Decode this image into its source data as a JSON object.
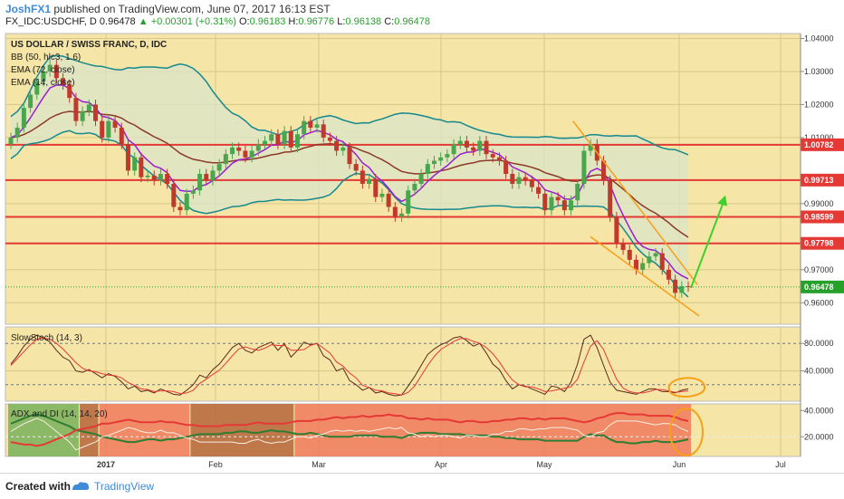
{
  "header": {
    "user": "JoshFX1",
    "published": "published on TradingView.com, June 07, 2017 16:13 EST",
    "symbol": "FX_IDC:USDCHF, D",
    "last": "0.96478",
    "change": "+0.00301 (+0.31%)",
    "o_label": "O:",
    "o_value": "0.96183",
    "h_label": "H:",
    "h_value": "0.96776",
    "l_label": "L:",
    "l_value": "0.96138",
    "c_label": "C:",
    "c_value": "0.96478"
  },
  "footer": {
    "created_with": "Created with",
    "brand": "TradingView"
  },
  "colors": {
    "panel_bg": "#f5e5a6",
    "bb_band": "#16888e",
    "bb_fill": "#d9e5c8",
    "ema72": "#8b3a2a",
    "ema14": "#9a1fd0",
    "up_candle": "#4aa64d",
    "down_candle": "#c0392b",
    "support_line": "#e53935",
    "wedge": "#f6a01a",
    "arrow": "#3cd12c",
    "stoch_k": "#5a2a1a",
    "stoch_d": "#e53935",
    "adx_green": "#2e7d32",
    "adx_red": "#e53935"
  },
  "chart_data": [
    {
      "type": "candlestick",
      "title": "US DOLLAR / SWISS FRANC, D, IDC",
      "indicators": [
        "BB (50, hlc3, 1.6)",
        "EMA (72, close)",
        "EMA (14, close)"
      ],
      "x_ticks": [
        "2017",
        "Feb",
        "Mar",
        "Apr",
        "May",
        "Jun",
        "Jul"
      ],
      "y_ticks": [
        "1.04000",
        "1.03000",
        "1.02000",
        "1.01000",
        "0.99000",
        "0.97000",
        "0.96000"
      ],
      "ylim": [
        0.9535,
        1.0415
      ],
      "price_tags": [
        {
          "label": "1.00782",
          "value": 1.00782
        },
        {
          "label": "0.99713",
          "value": 0.99713
        },
        {
          "label": "0.98599",
          "value": 0.98599
        },
        {
          "label": "0.97798",
          "value": 0.97798
        },
        {
          "label": "0.96478",
          "value": 0.96478
        }
      ],
      "support_resistance": [
        1.00782,
        0.99713,
        0.98599,
        0.97798
      ],
      "close": [
        1.01,
        1.013,
        1.019,
        1.023,
        1.027,
        1.03,
        1.032,
        1.028,
        1.026,
        1.022,
        1.015,
        1.018,
        1.02,
        1.015,
        1.01,
        1.015,
        1.013,
        1.008,
        1.0,
        1.004,
        0.998,
        0.9985,
        0.997,
        0.999,
        0.996,
        0.989,
        0.988,
        0.993,
        0.994,
        0.999,
        0.997,
        1.0,
        1.002,
        1.005,
        1.007,
        1.006,
        1.004,
        1.006,
        1.008,
        1.009,
        1.011,
        1.008,
        1.012,
        1.007,
        1.011,
        1.015,
        1.013,
        1.014,
        1.01,
        1.009,
        1.006,
        1.007,
        1.002,
        1.0,
        0.996,
        0.9975,
        0.992,
        0.993,
        0.989,
        0.986,
        0.987,
        0.994,
        0.996,
        0.999,
        1.002,
        1.003,
        1.004,
        1.005,
        1.008,
        1.009,
        1.007,
        1.006,
        1.009,
        1.005,
        1.004,
        1.003,
        0.999,
        0.996,
        0.998,
        0.997,
        0.995,
        0.993,
        0.988,
        0.992,
        0.991,
        0.988,
        0.991,
        0.996,
        1.006,
        1.008,
        1.003,
        0.997,
        0.986,
        0.978,
        0.976,
        0.973,
        0.97,
        0.972,
        0.974,
        0.975,
        0.97,
        0.967,
        0.963,
        0.965,
        0.9648
      ]
    },
    {
      "type": "line",
      "title": "SlowStoch (14, 3)",
      "y_ticks": [
        "80.0000",
        "40.0000"
      ],
      "ylim": [
        0,
        100
      ],
      "series": [
        {
          "values": [
            50,
            62,
            76,
            86,
            92,
            88,
            82,
            70,
            60,
            55,
            40,
            38,
            42,
            36,
            30,
            36,
            32,
            24,
            14,
            18,
            10,
            12,
            8,
            14,
            10,
            6,
            5,
            12,
            20,
            34,
            30,
            42,
            50,
            62,
            74,
            80,
            70,
            66,
            74,
            78,
            82,
            70,
            80,
            60,
            70,
            82,
            78,
            80,
            62,
            56,
            40,
            44,
            26,
            20,
            12,
            16,
            8,
            10,
            6,
            4,
            5,
            18,
            32,
            48,
            64,
            72,
            78,
            82,
            88,
            90,
            84,
            76,
            80,
            66,
            50,
            42,
            26,
            14,
            20,
            18,
            14,
            10,
            6,
            18,
            16,
            10,
            24,
            50,
            86,
            92,
            74,
            48,
            24,
            12,
            10,
            8,
            6,
            10,
            14,
            14,
            10,
            10,
            8,
            12,
            14
          ]
        },
        {
          "values": [
            48,
            58,
            68,
            78,
            86,
            88,
            86,
            80,
            72,
            62,
            52,
            44,
            40,
            39,
            36,
            34,
            33,
            30,
            23,
            19,
            14,
            13,
            10,
            11,
            11,
            10,
            7,
            8,
            12,
            22,
            28,
            35,
            41,
            51,
            62,
            72,
            75,
            72,
            70,
            73,
            78,
            77,
            77,
            70,
            70,
            71,
            77,
            80,
            73,
            66,
            53,
            47,
            37,
            30,
            19,
            16,
            12,
            11,
            8,
            7,
            5,
            9,
            18,
            33,
            48,
            61,
            71,
            77,
            83,
            87,
            87,
            83,
            80,
            74,
            65,
            53,
            39,
            27,
            20,
            17,
            17,
            14,
            10,
            11,
            13,
            15,
            17,
            28,
            53,
            76,
            84,
            71,
            49,
            28,
            15,
            10,
            8,
            8,
            10,
            13,
            13,
            11,
            9,
            10,
            11
          ]
        }
      ]
    },
    {
      "type": "line",
      "title": "ADX and DI (14, 14, 20)",
      "y_ticks": [
        "40.0000",
        "20.0000"
      ],
      "ylim": [
        5,
        45
      ],
      "series": [
        {
          "values": [
            30,
            32,
            34,
            36,
            37,
            36,
            34,
            32,
            30,
            28,
            25,
            24,
            23,
            22,
            20,
            19,
            18,
            17,
            16,
            16,
            17,
            18,
            18,
            17,
            18,
            18,
            19,
            20,
            21,
            22,
            22,
            22,
            22,
            23,
            23,
            24,
            24,
            23,
            23,
            24,
            25,
            24,
            24,
            23,
            22,
            22,
            23,
            22,
            21,
            20,
            20,
            20,
            20,
            21,
            21,
            21,
            21,
            20,
            20,
            20,
            19,
            21,
            22,
            23,
            23,
            23,
            22,
            22,
            22,
            22,
            21,
            21,
            21,
            21,
            20,
            20,
            19,
            19,
            18,
            18,
            18,
            18,
            17,
            17,
            17,
            17,
            17,
            17,
            20,
            22,
            21,
            21,
            18,
            16,
            16,
            15,
            15,
            16,
            16,
            17,
            16,
            16,
            16,
            17,
            18
          ]
        },
        {
          "values": [
            16,
            15,
            14,
            14,
            13,
            14,
            16,
            18,
            20,
            22,
            25,
            26,
            27,
            28,
            30,
            30,
            31,
            32,
            33,
            32,
            31,
            31,
            31,
            32,
            31,
            31,
            30,
            29,
            29,
            28,
            28,
            28,
            28,
            29,
            29,
            29,
            29,
            30,
            31,
            30,
            30,
            30,
            30,
            31,
            32,
            32,
            32,
            33,
            33,
            34,
            35,
            34,
            35,
            35,
            36,
            35,
            36,
            36,
            37,
            36,
            36,
            34,
            34,
            33,
            34,
            33,
            33,
            33,
            32,
            31,
            32,
            32,
            31,
            31,
            32,
            32,
            33,
            33,
            34,
            34,
            33,
            34,
            33,
            34,
            34,
            34,
            33,
            32,
            31,
            32,
            34,
            35,
            37,
            38,
            38,
            37,
            37,
            37,
            36,
            36,
            36,
            36,
            35,
            33,
            32
          ]
        }
      ]
    }
  ]
}
